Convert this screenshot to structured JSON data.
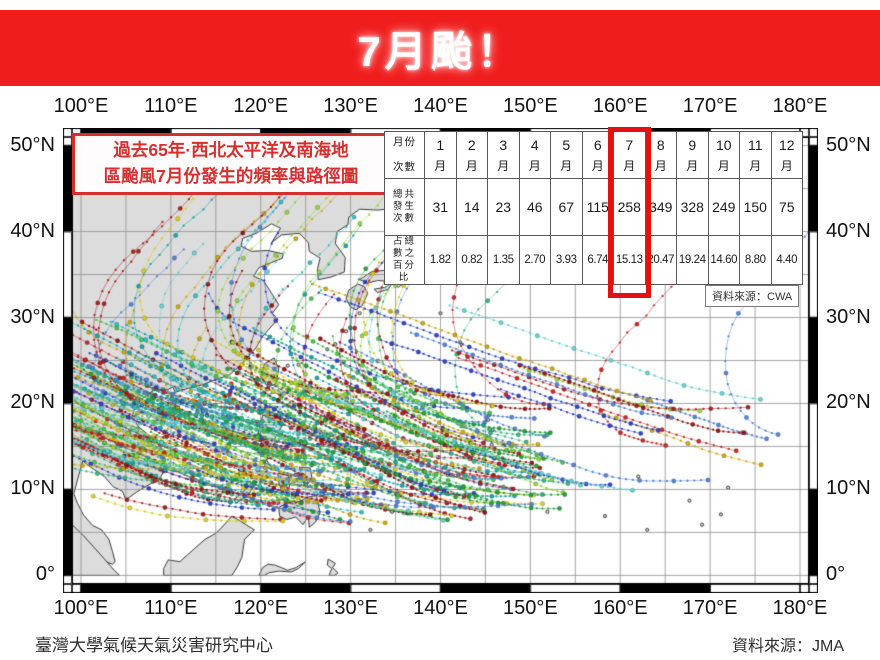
{
  "banner": {
    "title": "7月颱！"
  },
  "annotation_box": {
    "line1": "過去65年·西北太平洋及南海地",
    "line2": "區颱風7月份發生的頻率與路徑圖"
  },
  "freq_table": {
    "corner_top": "月份",
    "corner_bottom": "次數",
    "month_suffix": "月",
    "months": [
      "1",
      "2",
      "3",
      "4",
      "5",
      "6",
      "7",
      "8",
      "9",
      "10",
      "11",
      "12"
    ],
    "count_label_lines": [
      "總共",
      "發生",
      "次數"
    ],
    "percent_label_lines": [
      "占總",
      "數之",
      "百分",
      "比"
    ],
    "counts": [
      "31",
      "14",
      "23",
      "46",
      "67",
      "115",
      "258",
      "349",
      "328",
      "249",
      "150",
      "75"
    ],
    "percents": [
      "1.82",
      "0.82",
      "1.35",
      "2.70",
      "3.93",
      "6.74",
      "15.13",
      "20.47",
      "19.24",
      "14.60",
      "8.80",
      "4.40"
    ],
    "highlight_index": 6,
    "source_label": "資料來源：CWA"
  },
  "chart_data": {
    "type": "table",
    "title": "7月颱！",
    "subtitle": "過去65年·西北太平洋及南海地區颱風7月份發生的頻率與路徑圖",
    "categories": [
      "1月",
      "2月",
      "3月",
      "4月",
      "5月",
      "6月",
      "7月",
      "8月",
      "9月",
      "10月",
      "11月",
      "12月"
    ],
    "series": [
      {
        "name": "總共發生次數",
        "values": [
          31,
          14,
          23,
          46,
          67,
          115,
          258,
          349,
          328,
          249,
          150,
          75
        ]
      },
      {
        "name": "占總數之百分比",
        "values": [
          1.82,
          0.82,
          1.35,
          2.7,
          3.93,
          6.74,
          15.13,
          20.47,
          19.24,
          14.6,
          8.8,
          4.4
        ]
      }
    ],
    "highlighted_category": "7月",
    "map_extent": {
      "lon": [
        100,
        180
      ],
      "lat": [
        0,
        50
      ]
    },
    "sources": [
      "CWA",
      "JMA"
    ]
  },
  "map_axes": {
    "lon_ticks": [
      {
        "value": 100,
        "label": "100°E"
      },
      {
        "value": 110,
        "label": "110°E"
      },
      {
        "value": 120,
        "label": "120°E"
      },
      {
        "value": 130,
        "label": "130°E"
      },
      {
        "value": 140,
        "label": "140°E"
      },
      {
        "value": 150,
        "label": "150°E"
      },
      {
        "value": 160,
        "label": "160°E"
      },
      {
        "value": 170,
        "label": "170°E"
      },
      {
        "value": 180,
        "label": "180°E"
      }
    ],
    "lat_ticks": [
      {
        "value": 50,
        "label": "50°N"
      },
      {
        "value": 40,
        "label": "40°N"
      },
      {
        "value": 30,
        "label": "30°N"
      },
      {
        "value": 20,
        "label": "20°N"
      },
      {
        "value": 10,
        "label": "10°N"
      },
      {
        "value": 0,
        "label": "0°"
      }
    ]
  },
  "tracks": {
    "seed": 1379,
    "palette": [
      "#8e1212",
      "#a81c1c",
      "#c22424",
      "#17a0a0",
      "#2fbdbd",
      "#63d0cf",
      "#1f9e37",
      "#46c04a",
      "#8fd435",
      "#d8cb1e",
      "#c9a40e",
      "#2b3fc4",
      "#4d7fd6",
      "#36b07e"
    ],
    "groups": [
      {
        "name": "main-basin",
        "count": 172,
        "lon": [
          116,
          154
        ],
        "lat": [
          6,
          21.5
        ],
        "recurve_p": 0.68,
        "drift_floor": 150
      },
      {
        "name": "far-east",
        "count": 22,
        "lon": [
          150,
          178
        ],
        "lat": [
          8,
          21
        ],
        "recurve_p": 0.35,
        "drift_floor": 158
      },
      {
        "name": "south-china-sea",
        "count": 27,
        "lon": [
          108,
          121
        ],
        "lat": [
          9,
          19
        ],
        "recurve_p": 0.2,
        "drift_floor": 152
      }
    ]
  },
  "footer": {
    "left": "臺灣大學氣候天氣災害研究中心",
    "right": "資料來源：JMA"
  },
  "colors": {
    "banner_bg": "#f01d1d",
    "accent_red": "#d43030",
    "highlight_red": "#e31111",
    "land_fill": "#dcdcdc",
    "land_stroke": "#3c3c3c",
    "grid": "#8f8f8f"
  }
}
